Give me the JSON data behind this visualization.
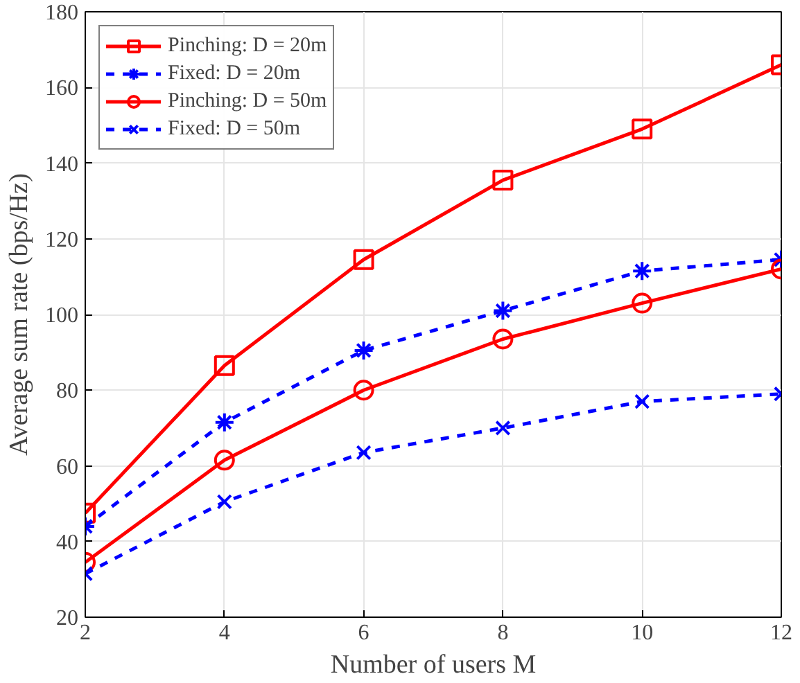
{
  "chart_data": {
    "type": "line",
    "xlabel": "Number of users M",
    "ylabel": "Average sum rate (bps/Hz)",
    "x": [
      2,
      4,
      6,
      8,
      10,
      12
    ],
    "xlim": [
      2,
      12
    ],
    "ylim": [
      20,
      180
    ],
    "xticks": [
      2,
      4,
      6,
      8,
      10,
      12
    ],
    "yticks": [
      20,
      40,
      60,
      80,
      100,
      120,
      140,
      160,
      180
    ],
    "grid": true,
    "legend": "top left",
    "series": [
      {
        "name": "Pinching: D = 20m",
        "color": "#ff0000",
        "marker": "square",
        "line_style": "solid",
        "values": [
          47.5,
          86.5,
          114.5,
          135.5,
          149,
          166
        ]
      },
      {
        "name": "Fixed: D = 20m",
        "color": "#0000ff",
        "marker": "cross",
        "line_style": "dashed",
        "values": [
          44,
          71.5,
          90.5,
          101,
          111.5,
          114.5
        ]
      },
      {
        "name": "Pinching: D = 50m",
        "color": "#ff0000",
        "marker": "circle",
        "line_style": "solid",
        "values": [
          34.5,
          61.5,
          80,
          93.5,
          103,
          112
        ]
      },
      {
        "name": "Fixed: D = 50m",
        "color": "#0000ff",
        "marker": "cross",
        "line_style": "dashed",
        "values": [
          31.5,
          50.5,
          63.5,
          70,
          77,
          79
        ]
      }
    ]
  }
}
